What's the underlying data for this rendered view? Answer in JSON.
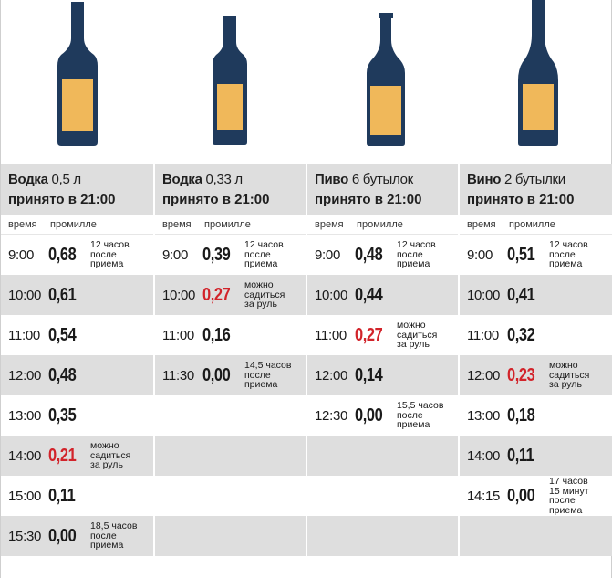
{
  "columns": [
    {
      "drink": "Водка",
      "amount": "0,5 л",
      "taken": "принято в 21:00",
      "time_header": "время",
      "promille_header": "промилле",
      "rows": [
        {
          "time": "9:00",
          "value": "0,68",
          "note": "12 часов\nпосле\nприема",
          "red": false
        },
        {
          "time": "10:00",
          "value": "0,61",
          "note": "",
          "red": false
        },
        {
          "time": "11:00",
          "value": "0,54",
          "note": "",
          "red": false
        },
        {
          "time": "12:00",
          "value": "0,48",
          "note": "",
          "red": false
        },
        {
          "time": "13:00",
          "value": "0,35",
          "note": "",
          "red": false
        },
        {
          "time": "14:00",
          "value": "0,21",
          "note": "можно\nсадиться\nза руль",
          "red": true
        },
        {
          "time": "15:00",
          "value": "0,11",
          "note": "",
          "red": false
        },
        {
          "time": "15:30",
          "value": "0,00",
          "note": "18,5 часов\nпосле\nприема",
          "red": false
        }
      ]
    },
    {
      "drink": "Водка",
      "amount": "0,33 л",
      "taken": "принято в 21:00",
      "time_header": "время",
      "promille_header": "промилле",
      "rows": [
        {
          "time": "9:00",
          "value": "0,39",
          "note": "12 часов\nпосле\nприема",
          "red": false
        },
        {
          "time": "10:00",
          "value": "0,27",
          "note": "можно\nсадиться\nза руль",
          "red": true
        },
        {
          "time": "11:00",
          "value": "0,16",
          "note": "",
          "red": false
        },
        {
          "time": "11:30",
          "value": "0,00",
          "note": "14,5 часов\nпосле\nприема",
          "red": false
        },
        {
          "time": "",
          "value": "",
          "note": "",
          "red": false
        },
        {
          "time": "",
          "value": "",
          "note": "",
          "red": false
        },
        {
          "time": "",
          "value": "",
          "note": "",
          "red": false
        },
        {
          "time": "",
          "value": "",
          "note": "",
          "red": false
        }
      ]
    },
    {
      "drink": "Пиво",
      "amount": "6 бутылок",
      "taken": "принято в 21:00",
      "time_header": "время",
      "promille_header": "промилле",
      "rows": [
        {
          "time": "9:00",
          "value": "0,48",
          "note": "12 часов\nпосле\nприема",
          "red": false
        },
        {
          "time": "10:00",
          "value": "0,44",
          "note": "",
          "red": false
        },
        {
          "time": "11:00",
          "value": "0,27",
          "note": "можно\nсадиться\nза руль",
          "red": true
        },
        {
          "time": "12:00",
          "value": "0,14",
          "note": "",
          "red": false
        },
        {
          "time": "12:30",
          "value": "0,00",
          "note": "15,5 часов\nпосле\nприема",
          "red": false
        },
        {
          "time": "",
          "value": "",
          "note": "",
          "red": false
        },
        {
          "time": "",
          "value": "",
          "note": "",
          "red": false
        },
        {
          "time": "",
          "value": "",
          "note": "",
          "red": false
        }
      ]
    },
    {
      "drink": "Вино",
      "amount": "2 бутылки",
      "taken": "принято в 21:00",
      "time_header": "время",
      "promille_header": "промилле",
      "rows": [
        {
          "time": "9:00",
          "value": "0,51",
          "note": "12 часов\nпосле\nприема",
          "red": false
        },
        {
          "time": "10:00",
          "value": "0,41",
          "note": "",
          "red": false
        },
        {
          "time": "11:00",
          "value": "0,32",
          "note": "",
          "red": false
        },
        {
          "time": "12:00",
          "value": "0,23",
          "note": "можно\nсадиться\nза руль",
          "red": true
        },
        {
          "time": "13:00",
          "value": "0,18",
          "note": "",
          "red": false
        },
        {
          "time": "14:00",
          "value": "0,11",
          "note": "",
          "red": false
        },
        {
          "time": "14:15",
          "value": "0,00",
          "note": "17 часов\n15 минут\nпосле\nприема",
          "red": false
        },
        {
          "time": "",
          "value": "",
          "note": "",
          "red": false
        }
      ]
    }
  ],
  "colors": {
    "bottle": "#1f3a5c",
    "label": "#f0b85a",
    "row_gray": "#dedede",
    "highlight_red": "#d2232a"
  },
  "icons": [
    "vodka-bottle-icon",
    "small-vodka-bottle-icon",
    "beer-bottle-icon",
    "wine-bottle-icon"
  ]
}
